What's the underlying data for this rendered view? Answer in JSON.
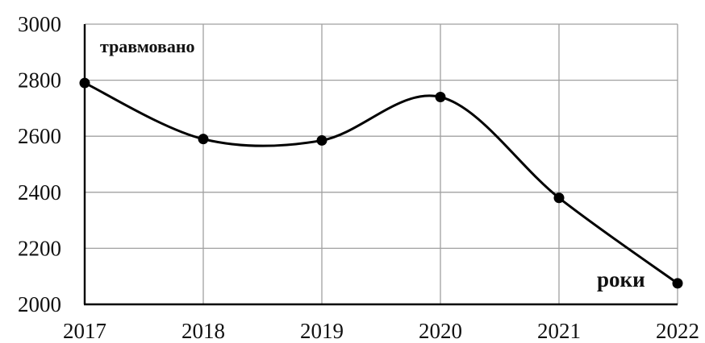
{
  "chart_data": {
    "type": "line",
    "title": "",
    "ylabel": "травмовано",
    "xlabel": "роки",
    "x": [
      "2017",
      "2018",
      "2019",
      "2020",
      "2021",
      "2022"
    ],
    "y_ticks": [
      "2000",
      "2200",
      "2400",
      "2600",
      "2800",
      "3000"
    ],
    "ylim": [
      2000,
      3000
    ],
    "grid": true,
    "smooth": true,
    "series": [
      {
        "values": [
          2790,
          2590,
          2585,
          2740,
          2380,
          2075
        ],
        "color": "#000000"
      }
    ]
  }
}
